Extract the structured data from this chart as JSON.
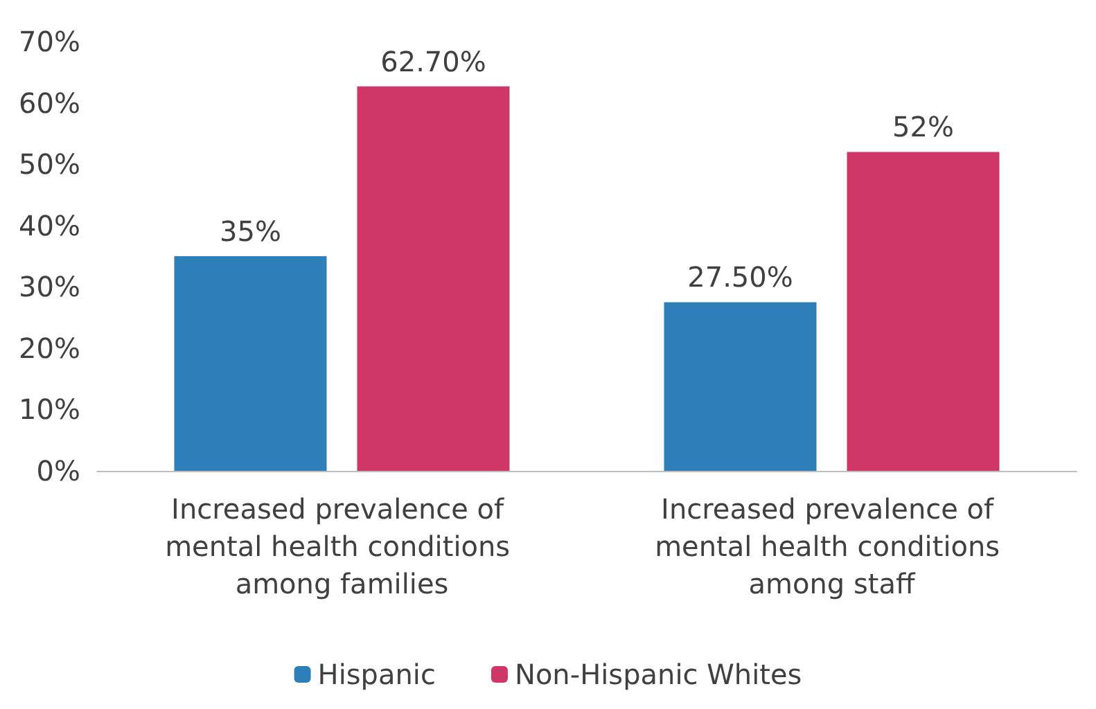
{
  "chart_data": {
    "type": "bar",
    "categories": [
      "Increased prevalence of mental health conditions among families",
      "Increased prevalence of mental health conditions among staff"
    ],
    "series": [
      {
        "name": "Hispanic",
        "color": "#2e7fb8",
        "values": [
          35,
          27.5
        ],
        "value_labels": [
          "35%",
          "27.50%"
        ]
      },
      {
        "name": "Non-Hispanic Whites",
        "color": "#cf3767",
        "values": [
          62.7,
          52
        ],
        "value_labels": [
          "62.70%",
          "52%"
        ]
      }
    ],
    "ylim": [
      0,
      70
    ],
    "yticks": [
      {
        "value": 0,
        "label": "0%"
      },
      {
        "value": 10,
        "label": "10%"
      },
      {
        "value": 20,
        "label": "20%"
      },
      {
        "value": 30,
        "label": "30%"
      },
      {
        "value": 40,
        "label": "40%"
      },
      {
        "value": 50,
        "label": "50%"
      },
      {
        "value": 60,
        "label": "60%"
      },
      {
        "value": 70,
        "label": "70%"
      }
    ],
    "grid": false,
    "legend": "bottom"
  }
}
